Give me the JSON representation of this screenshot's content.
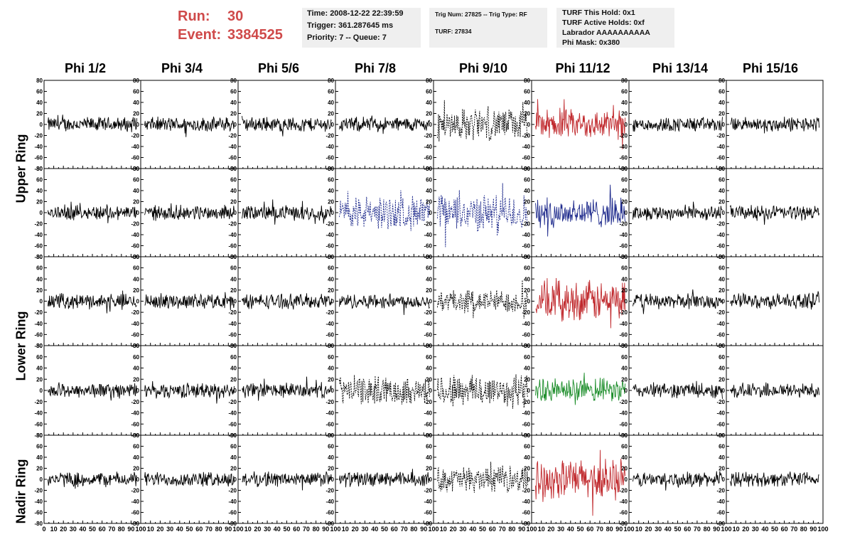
{
  "run": {
    "label": "Run:",
    "value": "30"
  },
  "event": {
    "label": "Event:",
    "value": "3384525"
  },
  "info1": [
    "Time: 2008-12-22 22:39:59",
    "Trigger: 361.287645 ms",
    "Priority: 7 -- Queue: 7"
  ],
  "info2": [
    "Trig Num: 27825 -- Trig Type: RF",
    "",
    "TURF: 27834"
  ],
  "info3": [
    "TURF This Hold: 0x1",
    "TURF Active Holds: 0xf",
    "Labrador AAAAAAAAAA",
    "Phi Mask: 0x380"
  ],
  "colors": {
    "title_red": "#cf4a4a",
    "trace_black": "#000000",
    "trace_red": "#c0282c",
    "trace_blue": "#1e2a8c",
    "trace_green": "#1a8c28",
    "panel_bg": "#efefef"
  },
  "chart_data": {
    "type": "line",
    "columns": [
      "Phi 1/2",
      "Phi 3/4",
      "Phi 5/6",
      "Phi 7/8",
      "Phi 9/10",
      "Phi 11/12",
      "Phi 13/14",
      "Phi 15/16"
    ],
    "ring_labels": [
      "Upper Ring",
      "Lower Ring",
      "Nadir Ring"
    ],
    "rows": 5,
    "row_rings": [
      "Upper Ring",
      "Upper Ring",
      "Lower Ring",
      "Lower Ring",
      "Nadir Ring"
    ],
    "ylim": [
      -80,
      80
    ],
    "yticks": [
      -80,
      -60,
      -40,
      -20,
      0,
      20,
      40,
      60,
      80
    ],
    "xlim": [
      0,
      100
    ],
    "xticks": [
      0,
      10,
      20,
      30,
      40,
      50,
      60,
      70,
      80,
      90,
      100
    ],
    "highlighted_panels": [
      {
        "row": 0,
        "col": 4,
        "style": "dotted",
        "color": "#000000",
        "amplitude": 30
      },
      {
        "row": 0,
        "col": 5,
        "style": "solid",
        "color": "#c0282c",
        "amplitude": 28
      },
      {
        "row": 1,
        "col": 3,
        "style": "dotted",
        "color": "#1e2a8c",
        "amplitude": 32
      },
      {
        "row": 1,
        "col": 4,
        "style": "dotted",
        "color": "#1e2a8c",
        "amplitude": 35
      },
      {
        "row": 1,
        "col": 5,
        "style": "solid",
        "color": "#1e2a8c",
        "amplitude": 28
      },
      {
        "row": 2,
        "col": 4,
        "style": "dotted",
        "color": "#000000",
        "amplitude": 22
      },
      {
        "row": 2,
        "col": 5,
        "style": "solid",
        "color": "#c0282c",
        "amplitude": 38
      },
      {
        "row": 3,
        "col": 3,
        "style": "dotted",
        "color": "#000000",
        "amplitude": 26
      },
      {
        "row": 3,
        "col": 4,
        "style": "dotted",
        "color": "#000000",
        "amplitude": 32
      },
      {
        "row": 3,
        "col": 5,
        "style": "solid",
        "color": "#1a8c28",
        "amplitude": 22
      },
      {
        "row": 4,
        "col": 4,
        "style": "dotted",
        "color": "#000000",
        "amplitude": 24
      },
      {
        "row": 4,
        "col": 5,
        "style": "solid",
        "color": "#c0282c",
        "amplitude": 38
      }
    ],
    "default_trace": {
      "style": "solid",
      "color": "#000000",
      "amplitude": 14
    }
  }
}
